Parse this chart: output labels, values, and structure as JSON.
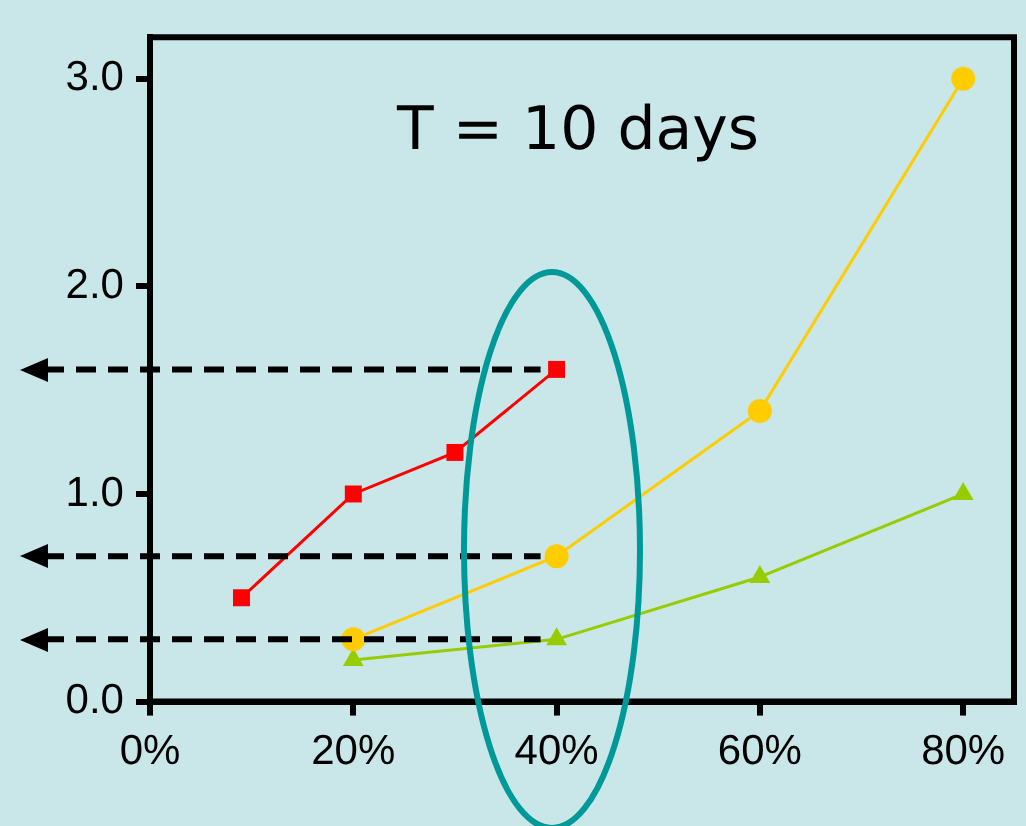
{
  "chart_data": {
    "type": "line",
    "annotations": [
      "T = 10 days"
    ],
    "xlim": [
      0,
      85
    ],
    "xticks": [
      {
        "value": 0,
        "label": "0%"
      },
      {
        "value": 20,
        "label": "20%"
      },
      {
        "value": 40,
        "label": "40%"
      },
      {
        "value": 60,
        "label": "60%"
      },
      {
        "value": 80,
        "label": "80%"
      }
    ],
    "ylim": [
      0,
      3.2
    ],
    "yticks": [
      {
        "value": 0,
        "label": "0.0"
      },
      {
        "value": 1,
        "label": "1.0"
      },
      {
        "value": 2,
        "label": "2.0"
      },
      {
        "value": 3,
        "label": "3.0"
      }
    ],
    "series": [
      {
        "color": "#ff0000",
        "marker": "square",
        "x": [
          9,
          20,
          30,
          40
        ],
        "values": [
          0.5,
          1.0,
          1.2,
          1.6
        ]
      },
      {
        "color": "#ffcc00",
        "marker": "circle",
        "x": [
          20,
          40,
          60,
          80
        ],
        "values": [
          0.3,
          0.7,
          1.4,
          3.0
        ]
      },
      {
        "color": "#99cc00",
        "marker": "triangle",
        "x": [
          20,
          40,
          60,
          80
        ],
        "values": [
          0.2,
          0.3,
          0.6,
          1.0
        ]
      }
    ],
    "ref_lines": [
      {
        "axis": "y",
        "value": 1.6,
        "color": "#000000",
        "line_style": "dashed"
      },
      {
        "axis": "y",
        "value": 0.7,
        "color": "#000000",
        "line_style": "dashed"
      },
      {
        "axis": "y",
        "value": 0.3,
        "color": "#000000",
        "line_style": "dashed"
      }
    ],
    "grid": false,
    "legend": false
  }
}
